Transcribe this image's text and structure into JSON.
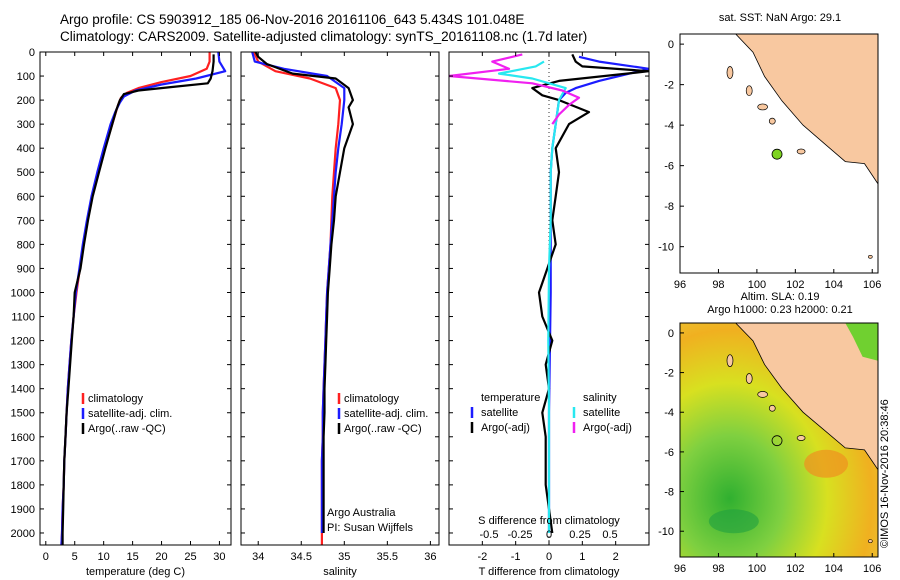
{
  "header": {
    "line1": "Argo profile: CS 5903912_185 06-Nov-2016 20161106_643 5.434S 101.048E",
    "line2": "Climatology: CARS2009. Satellite-adjusted climatology: synTS_20161108.nc (1.7d later)"
  },
  "credit": "©IMOS 16-Nov-2016 20:38:46",
  "colors": {
    "climatology": "#ff2020",
    "satellite": "#1c1cff",
    "argo": "#000000",
    "salinity_sat": "#28e8f0",
    "salinity_argo": "#f020f0",
    "land": "#f8c8a0",
    "dot": "#7ed321"
  },
  "chart_data": [
    {
      "type": "line",
      "name": "temperature-panel",
      "xlabel": "temperature (deg C)",
      "ylabel": "",
      "xlim": [
        -1,
        32
      ],
      "ylim": [
        2050,
        0
      ],
      "xticks": [
        "0",
        "5",
        "10",
        "15",
        "20",
        "25",
        "30"
      ],
      "yticks": [
        "0",
        "100",
        "200",
        "300",
        "400",
        "500",
        "600",
        "700",
        "800",
        "900",
        "1000",
        "1100",
        "1200",
        "1300",
        "1400",
        "1500",
        "1600",
        "1700",
        "1800",
        "1900",
        "2000"
      ],
      "legend": [
        "climatology",
        "satellite-adj. clim.",
        "Argo(..raw -QC)"
      ],
      "series": [
        {
          "name": "climatology",
          "color_key": "climatology",
          "points": [
            [
              28.3,
              0
            ],
            [
              28.3,
              40
            ],
            [
              27.8,
              70
            ],
            [
              25,
              100
            ],
            [
              20,
              125
            ],
            [
              16,
              150
            ],
            [
              14,
              170
            ],
            [
              13,
              190
            ],
            [
              12.5,
              220
            ],
            [
              11.5,
              300
            ],
            [
              10.2,
              400
            ],
            [
              9,
              500
            ],
            [
              8,
              600
            ],
            [
              7.2,
              700
            ],
            [
              6.5,
              800
            ],
            [
              5.9,
              900
            ],
            [
              5.3,
              1000
            ],
            [
              4.8,
              1100
            ],
            [
              4.4,
              1200
            ],
            [
              4.1,
              1300
            ],
            [
              3.8,
              1400
            ],
            [
              3.6,
              1500
            ],
            [
              3.4,
              1600
            ],
            [
              3.2,
              1700
            ],
            [
              3.1,
              1800
            ],
            [
              2.9,
              1900
            ],
            [
              2.8,
              2000
            ],
            [
              2.7,
              2050
            ]
          ]
        },
        {
          "name": "satellite-adj. clim.",
          "color_key": "satellite",
          "points": [
            [
              29.8,
              0
            ],
            [
              30,
              40
            ],
            [
              31,
              80
            ],
            [
              26,
              110
            ],
            [
              20,
              135
            ],
            [
              15.5,
              160
            ],
            [
              13.5,
              185
            ],
            [
              12.8,
              210
            ],
            [
              12,
              250
            ],
            [
              11.2,
              300
            ],
            [
              10,
              400
            ],
            [
              8.9,
              500
            ],
            [
              7.9,
              600
            ],
            [
              7.1,
              700
            ],
            [
              6.4,
              800
            ],
            [
              5.8,
              900
            ],
            [
              5.2,
              1000
            ],
            [
              4.8,
              1100
            ],
            [
              4.4,
              1200
            ],
            [
              4.1,
              1300
            ],
            [
              3.8,
              1400
            ],
            [
              3.6,
              1500
            ],
            [
              3.4,
              1600
            ],
            [
              3.2,
              1700
            ],
            [
              3.1,
              1800
            ],
            [
              2.9,
              1900
            ],
            [
              2.8,
              2000
            ],
            [
              2.7,
              2050
            ]
          ]
        },
        {
          "name": "Argo(..raw -QC)",
          "color_key": "argo",
          "points": [
            [
              29,
              10
            ],
            [
              29,
              40
            ],
            [
              28.8,
              80
            ],
            [
              28.5,
              110
            ],
            [
              28,
              130
            ],
            [
              22,
              145
            ],
            [
              16,
              160
            ],
            [
              13.5,
              175
            ],
            [
              12.8,
              200
            ],
            [
              12.2,
              240
            ],
            [
              11.5,
              300
            ],
            [
              10.3,
              400
            ],
            [
              9.2,
              500
            ],
            [
              8.1,
              600
            ],
            [
              7.3,
              700
            ],
            [
              6.6,
              800
            ],
            [
              6,
              900
            ],
            [
              5.4,
              960
            ],
            [
              5,
              1000
            ],
            [
              4.8,
              1100
            ],
            [
              4.5,
              1200
            ],
            [
              4.2,
              1300
            ],
            [
              3.9,
              1400
            ],
            [
              3.6,
              1500
            ],
            [
              3.4,
              1600
            ],
            [
              3.2,
              1700
            ],
            [
              3.1,
              1800
            ],
            [
              3,
              1900
            ],
            [
              2.9,
              2000
            ],
            [
              2.9,
              2050
            ]
          ]
        }
      ]
    },
    {
      "type": "line",
      "name": "salinity-panel",
      "xlabel": "salinity",
      "xlim": [
        33.8,
        36.1
      ],
      "ylim": [
        2050,
        0
      ],
      "xticks": [
        "34",
        "34.5",
        "35",
        "35.5",
        "36"
      ],
      "legend": [
        "climatology",
        "satellite-adj. clim.",
        "Argo(..raw -QC)"
      ],
      "annotations": [
        "Argo Australia",
        "PI: Susan Wijffels"
      ],
      "series": [
        {
          "name": "climatology",
          "color_key": "climatology",
          "points": [
            [
              33.95,
              0
            ],
            [
              34.0,
              40
            ],
            [
              34.2,
              80
            ],
            [
              34.6,
              110
            ],
            [
              34.9,
              150
            ],
            [
              34.95,
              200
            ],
            [
              34.93,
              300
            ],
            [
              34.9,
              400
            ],
            [
              34.88,
              500
            ],
            [
              34.86,
              600
            ],
            [
              34.85,
              700
            ],
            [
              34.84,
              800
            ],
            [
              34.82,
              900
            ],
            [
              34.8,
              1000
            ],
            [
              34.79,
              1100
            ],
            [
              34.78,
              1200
            ],
            [
              34.77,
              1300
            ],
            [
              34.76,
              1400
            ],
            [
              34.75,
              1500
            ],
            [
              34.75,
              1600
            ],
            [
              34.74,
              1700
            ],
            [
              34.74,
              1800
            ],
            [
              34.74,
              1900
            ],
            [
              34.74,
              2000
            ],
            [
              34.74,
              2050
            ]
          ]
        },
        {
          "name": "satellite-adj. clim.",
          "color_key": "satellite",
          "points": [
            [
              33.93,
              0
            ],
            [
              33.96,
              40
            ],
            [
              34.3,
              70
            ],
            [
              34.8,
              100
            ],
            [
              35.0,
              150
            ],
            [
              35.0,
              200
            ],
            [
              34.97,
              300
            ],
            [
              34.93,
              400
            ],
            [
              34.9,
              500
            ],
            [
              34.88,
              600
            ],
            [
              34.86,
              700
            ],
            [
              34.84,
              800
            ],
            [
              34.82,
              900
            ],
            [
              34.8,
              1000
            ],
            [
              34.79,
              1100
            ],
            [
              34.78,
              1200
            ],
            [
              34.77,
              1300
            ],
            [
              34.76,
              1400
            ],
            [
              34.75,
              1500
            ],
            [
              34.75,
              1600
            ],
            [
              34.74,
              1700
            ],
            [
              34.74,
              1800
            ],
            [
              34.74,
              1900
            ],
            [
              34.74,
              2000
            ]
          ]
        },
        {
          "name": "Argo(..raw -QC)",
          "color_key": "argo",
          "points": [
            [
              33.97,
              0
            ],
            [
              34.0,
              20
            ],
            [
              34.1,
              50
            ],
            [
              34.4,
              90
            ],
            [
              34.9,
              110
            ],
            [
              35.05,
              150
            ],
            [
              35.1,
              200
            ],
            [
              35.05,
              230
            ],
            [
              35.1,
              300
            ],
            [
              35.0,
              400
            ],
            [
              34.95,
              500
            ],
            [
              34.9,
              600
            ],
            [
              34.88,
              700
            ],
            [
              34.85,
              800
            ],
            [
              34.83,
              900
            ],
            [
              34.81,
              1000
            ],
            [
              34.8,
              1100
            ],
            [
              34.79,
              1200
            ],
            [
              34.78,
              1300
            ],
            [
              34.77,
              1400
            ],
            [
              34.77,
              1500
            ],
            [
              34.76,
              1600
            ],
            [
              34.76,
              1700
            ],
            [
              34.76,
              1800
            ],
            [
              34.76,
              1900
            ],
            [
              34.76,
              2000
            ]
          ]
        }
      ]
    },
    {
      "type": "line",
      "name": "difference-panel",
      "xlabel": "T difference from climatology",
      "xlabel_top": "S difference from climatology",
      "xlim": [
        -3,
        3
      ],
      "ylim": [
        2050,
        0
      ],
      "xticks": [
        "-2",
        "-1",
        "0",
        "1",
        "2"
      ],
      "xticks_s": [
        "-0.5",
        "-0.25",
        "0",
        "0.25",
        "0.5"
      ],
      "legend": {
        "temperature_title": "temperature",
        "salinity_title": "salinity",
        "satellite": "satellite",
        "argo": "Argo(-adj)"
      },
      "series": [
        {
          "name": "temperature satellite",
          "color_key": "satellite",
          "points": [
            [
              0.9,
              20
            ],
            [
              1.5,
              40
            ],
            [
              3,
              70
            ],
            [
              1.5,
              120
            ],
            [
              0.8,
              150
            ],
            [
              0.5,
              170
            ],
            [
              0.3,
              200
            ],
            [
              0.2,
              300
            ],
            [
              0.1,
              400
            ],
            [
              0.05,
              500
            ],
            [
              0.05,
              700
            ],
            [
              0.05,
              1000
            ],
            [
              0.0,
              1500
            ],
            [
              0.0,
              2000
            ]
          ]
        },
        {
          "name": "temperature Argo(-adj)",
          "color_key": "argo",
          "points": [
            [
              0.7,
              10
            ],
            [
              0.8,
              40
            ],
            [
              1,
              60
            ],
            [
              3,
              80
            ],
            [
              0.3,
              120
            ],
            [
              -0.5,
              150
            ],
            [
              -0.2,
              180
            ],
            [
              0.3,
              200
            ],
            [
              1.2,
              250
            ],
            [
              0.6,
              300
            ],
            [
              0.2,
              400
            ],
            [
              0.3,
              500
            ],
            [
              0.2,
              600
            ],
            [
              0.1,
              700
            ],
            [
              0.2,
              800
            ],
            [
              -0.3,
              1000
            ],
            [
              -0.2,
              1100
            ],
            [
              0.1,
              1200
            ],
            [
              -0.1,
              1300
            ],
            [
              0.0,
              1400
            ],
            [
              -0.2,
              1500
            ],
            [
              -0.1,
              1600
            ],
            [
              -0.1,
              1700
            ],
            [
              -0.1,
              1800
            ],
            [
              0.0,
              1900
            ],
            [
              0.1,
              2000
            ]
          ]
        },
        {
          "name": "salinity satellite",
          "color_key": "salinity_sat",
          "points": [
            [
              -0.15,
              40
            ],
            [
              -0.4,
              60
            ],
            [
              -1.5,
              90
            ],
            [
              -0.5,
              110
            ],
            [
              0.5,
              150
            ],
            [
              0.3,
              200
            ],
            [
              0.2,
              300
            ],
            [
              0.1,
              400
            ],
            [
              0.05,
              500
            ],
            [
              0.05,
              700
            ],
            [
              0.0,
              900
            ],
            [
              -0.02,
              1200
            ],
            [
              0.0,
              1500
            ],
            [
              0.0,
              2000
            ]
          ]
        },
        {
          "name": "salinity Argo(-adj)",
          "color_key": "salinity_argo",
          "points": [
            [
              -0.8,
              10
            ],
            [
              -1.7,
              40
            ],
            [
              -1.2,
              70
            ],
            [
              -3,
              100
            ],
            [
              -0.5,
              130
            ],
            [
              0.4,
              160
            ],
            [
              0.9,
              190
            ],
            [
              0.6,
              220
            ],
            [
              0.3,
              260
            ],
            [
              0.1,
              300
            ]
          ]
        }
      ]
    }
  ],
  "maps": [
    {
      "title": "sat. SST: NaN Argo: 29.1",
      "xticks": [
        "96",
        "98",
        "100",
        "102",
        "104",
        "106"
      ],
      "yticks": [
        "0",
        "-2",
        "-4",
        "-6",
        "-8",
        "-10"
      ],
      "xlim": [
        96,
        106.3
      ],
      "ylim": [
        0.5,
        -11.3
      ],
      "float_lon": 101.048,
      "float_lat": -5.434
    },
    {
      "title1": "Altim. SLA: 0.19",
      "title2": "Argo h1000: 0.23 h2000: 0.21",
      "xticks": [
        "96",
        "98",
        "100",
        "102",
        "104",
        "106"
      ],
      "yticks": [
        "0",
        "-2",
        "-4",
        "-6",
        "-8",
        "-10"
      ],
      "xlim": [
        96,
        106.3
      ],
      "ylim": [
        0.5,
        -11.3
      ],
      "float_lon": 101.048,
      "float_lat": -5.434
    }
  ]
}
